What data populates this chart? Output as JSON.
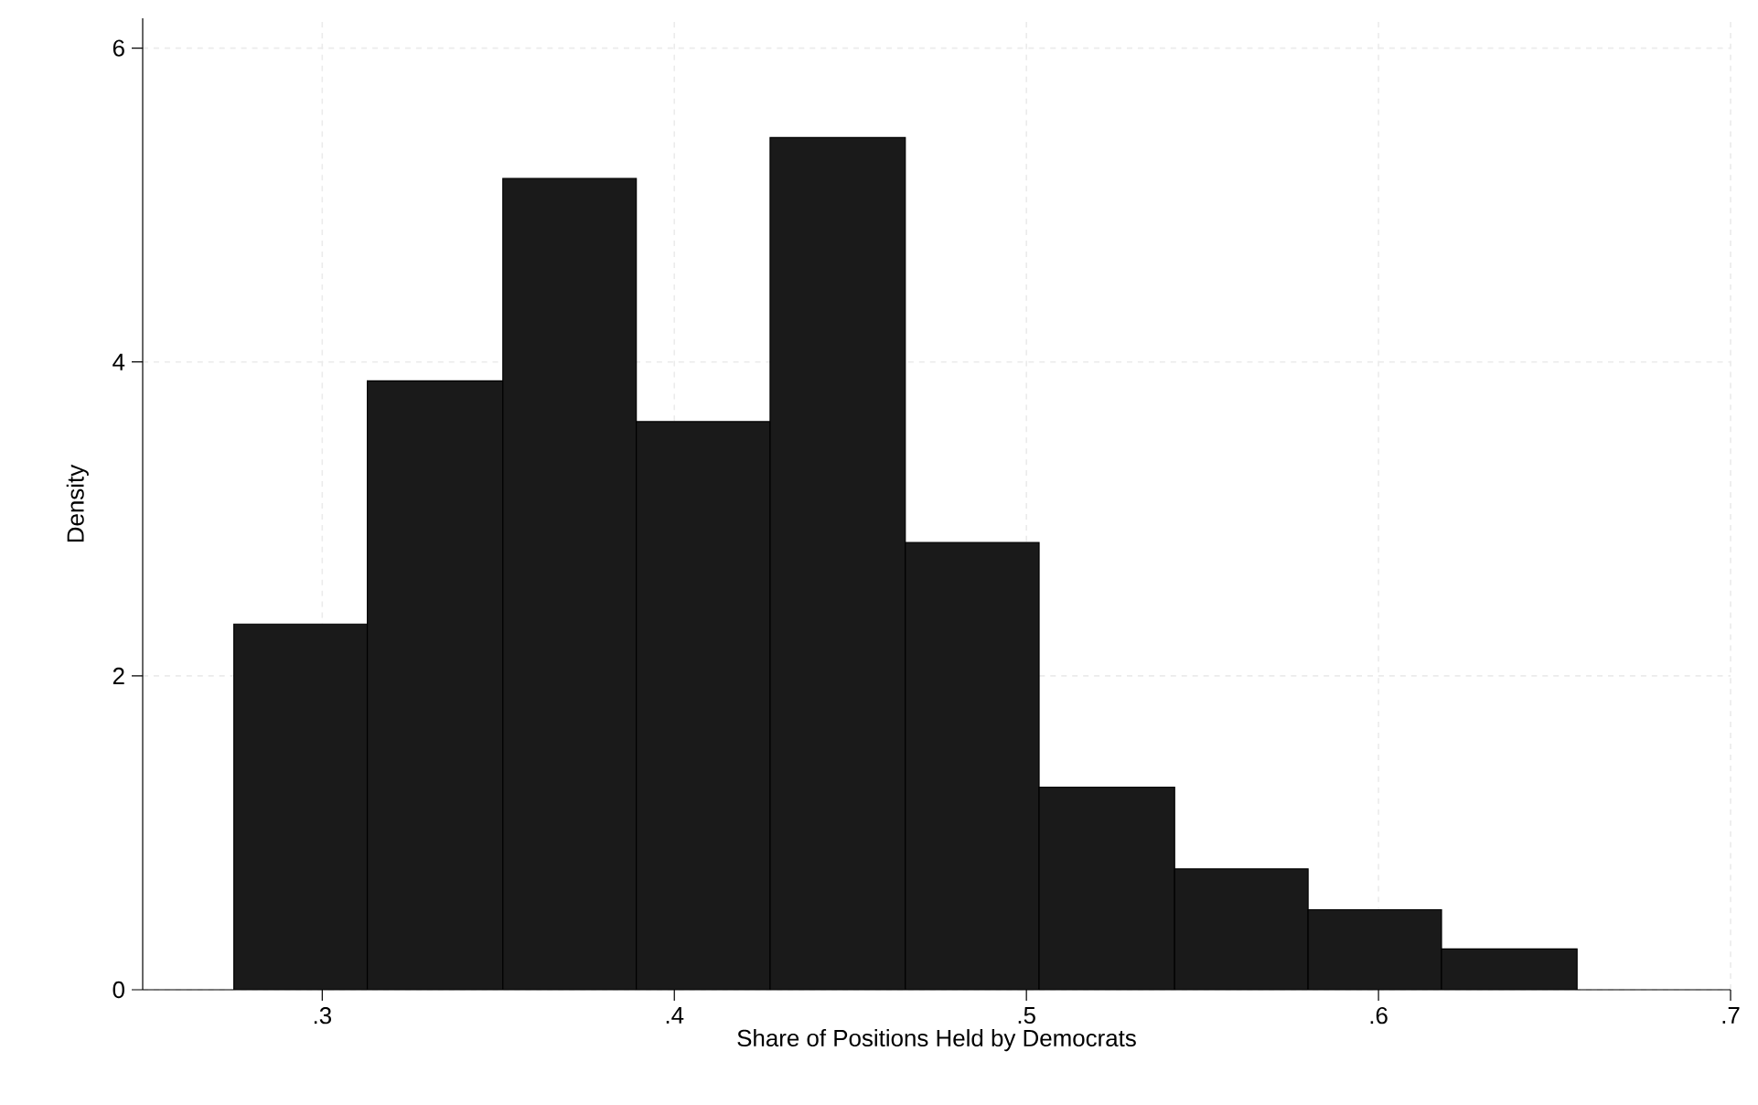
{
  "chart_data": {
    "type": "histogram",
    "xlabel": "Share of Positions Held by Democrats",
    "ylabel": "Density",
    "bins": [
      0.2749,
      0.3128,
      0.3513,
      0.3892,
      0.4272,
      0.4656,
      0.5036,
      0.5421,
      0.58,
      0.6179,
      0.6564
    ],
    "values": [
      2.33,
      3.88,
      5.17,
      3.62,
      5.43,
      2.85,
      1.29,
      0.77,
      0.51,
      0.26
    ],
    "color": "#1a1a1a",
    "xlim": [
      0.249,
      0.7
    ],
    "ylim": [
      0,
      6.19
    ],
    "xticks": [
      {
        "value": 0.3,
        "label": ".3"
      },
      {
        "value": 0.4,
        "label": ".4"
      },
      {
        "value": 0.5,
        "label": ".5"
      },
      {
        "value": 0.6,
        "label": ".6"
      },
      {
        "value": 0.7,
        "label": ".7"
      }
    ],
    "yticks": [
      0,
      2,
      4,
      6
    ],
    "grid": true
  }
}
